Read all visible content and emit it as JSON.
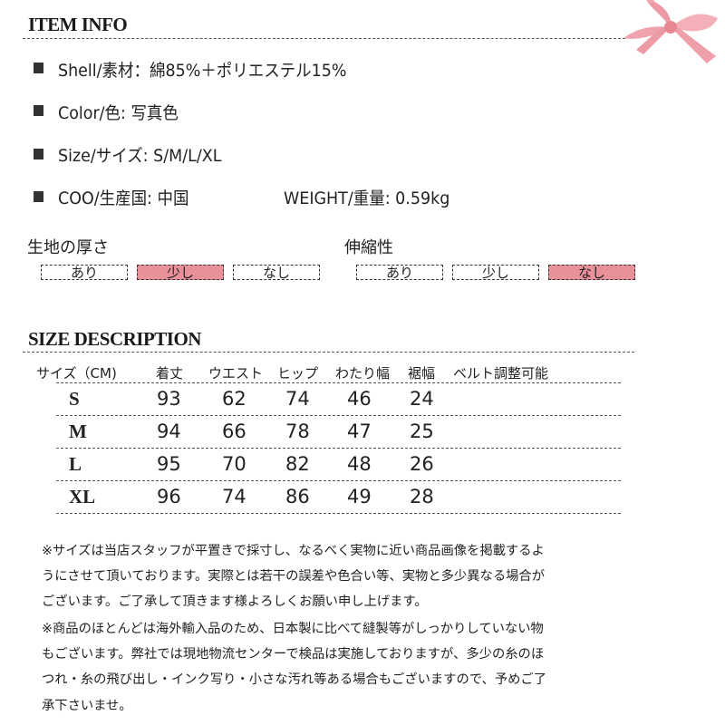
{
  "item_info": {
    "title": "ITEM INFO",
    "specs": [
      "Shell/素材：綿85%＋ポリエステル15%",
      "Color/色:  写真色",
      "Size/サイズ: S/M/L/XL",
      "COO/生産国: 中国"
    ],
    "weight": "WEIGHT/重量: 0.59kg",
    "thickness": {
      "label": "生地の厚さ",
      "options": [
        "あり",
        "少し",
        "なし"
      ],
      "selected": "少し"
    },
    "stretch": {
      "label": "伸縮性",
      "options": [
        "あり",
        "少し",
        "なし"
      ],
      "selected": "なし"
    },
    "accent_color": "#e8919b"
  },
  "size_description": {
    "title": "SIZE DESCRIPTION",
    "headers": [
      "サイズ（CM)",
      "着丈",
      "ウエスト",
      "ヒップ",
      "わたり幅",
      "裾幅",
      "ベルト調整可能"
    ],
    "rows": [
      {
        "size": "S",
        "values": [
          "93",
          "62",
          "74",
          "46",
          "24"
        ]
      },
      {
        "size": "M",
        "values": [
          "94",
          "66",
          "78",
          "47",
          "25"
        ]
      },
      {
        "size": "L",
        "values": [
          "95",
          "70",
          "82",
          "48",
          "26"
        ]
      },
      {
        "size": "XL",
        "values": [
          "96",
          "74",
          "86",
          "49",
          "28"
        ]
      }
    ]
  },
  "notes": [
    "※サイズは当店スタッフが平置きで採寸し、なるべく実物に近い商品画像を掲載するよ",
    "うにさせて頂いております。実際とは若干の誤差や色合い等、実物と多少異なる場合が",
    "ございます。ご了承して頂きます様よろしくお願い申し上げます。",
    "※商品のほとんどは海外輸入品のため、日本製に比べて縫製等がしっかりしていない物",
    "もございます。弊社では現地物流センターで検品は実施しておりますが、多少の糸のほ",
    "つれ・糸の飛び出し・インク写り・小さな汚れ等ある場合もございますので、予めご了",
    "承下さいませ。"
  ]
}
